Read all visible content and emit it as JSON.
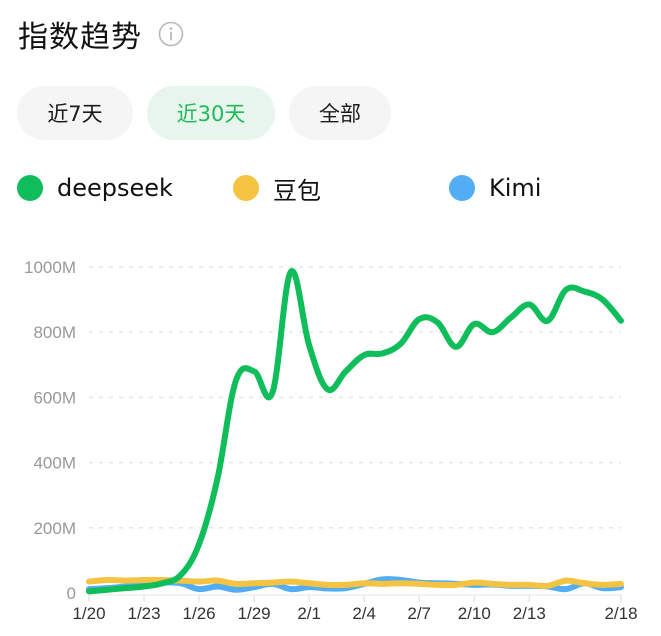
{
  "header": {
    "title": "指数趋势",
    "info_icon": "info-circle-icon"
  },
  "tabs": [
    {
      "label": "近7天",
      "active": false
    },
    {
      "label": "近30天",
      "active": true
    },
    {
      "label": "全部",
      "active": false
    }
  ],
  "colors": {
    "deepseek": "#0fbd5a",
    "doubao": "#f5c342",
    "kimi": "#52adf5",
    "active_tab_bg": "#e8f5ec",
    "active_tab_text": "#1fba5a",
    "tab_bg": "#f5f5f5"
  },
  "legend": [
    {
      "name": "deepseek",
      "color": "#0fbd5a"
    },
    {
      "name": "豆包",
      "color": "#f5c342"
    },
    {
      "name": "Kimi",
      "color": "#52adf5"
    }
  ],
  "chart_data": {
    "type": "line",
    "title": "指数趋势",
    "xlabel": "",
    "ylabel": "",
    "ylim": [
      0,
      1000
    ],
    "y_unit": "M",
    "yticks": [
      "0",
      "200M",
      "400M",
      "600M",
      "800M",
      "1000M"
    ],
    "xticks": [
      "1/20",
      "1/23",
      "1/26",
      "1/29",
      "2/1",
      "2/4",
      "2/7",
      "2/10",
      "2/13",
      "2/18"
    ],
    "grid": "horizontal dashed",
    "legend_position": "top",
    "x": [
      "1/20",
      "1/21",
      "1/22",
      "1/23",
      "1/24",
      "1/25",
      "1/26",
      "1/27",
      "1/28",
      "1/29",
      "1/30",
      "1/31",
      "2/1",
      "2/2",
      "2/3",
      "2/4",
      "2/5",
      "2/6",
      "2/7",
      "2/8",
      "2/9",
      "2/10",
      "2/11",
      "2/12",
      "2/13",
      "2/14",
      "2/15",
      "2/16",
      "2/17",
      "2/18"
    ],
    "series": [
      {
        "name": "deepseek",
        "color": "#0fbd5a",
        "values": [
          5,
          10,
          15,
          20,
          30,
          55,
          150,
          350,
          650,
          680,
          615,
          985,
          760,
          625,
          680,
          730,
          735,
          765,
          840,
          830,
          755,
          825,
          800,
          845,
          885,
          835,
          930,
          925,
          900,
          835
        ]
      },
      {
        "name": "豆包",
        "color": "#f5c342",
        "values": [
          35,
          40,
          38,
          40,
          40,
          38,
          35,
          38,
          28,
          30,
          32,
          35,
          30,
          25,
          25,
          30,
          28,
          30,
          28,
          25,
          25,
          32,
          28,
          25,
          25,
          22,
          38,
          30,
          25,
          28
        ]
      },
      {
        "name": "Kimi",
        "color": "#52adf5",
        "values": [
          12,
          15,
          20,
          25,
          32,
          30,
          12,
          20,
          10,
          18,
          28,
          12,
          18,
          14,
          15,
          28,
          42,
          40,
          32,
          30,
          28,
          25,
          26,
          22,
          22,
          20,
          12,
          30,
          15,
          18
        ]
      }
    ]
  }
}
